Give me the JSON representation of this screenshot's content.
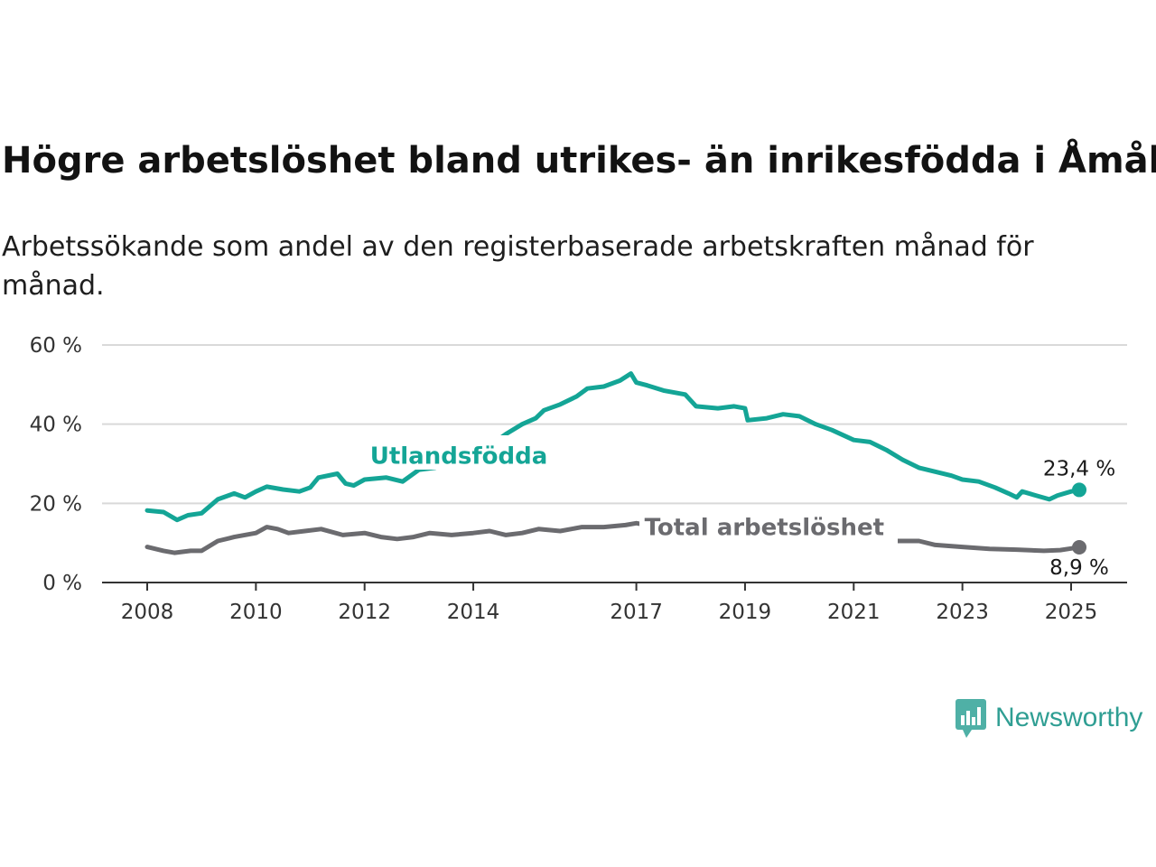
{
  "title": "Högre arbetslöshet bland utrikes- än inrikesfödda i Åmål",
  "subtitle": "Arbetssökande som andel av den registerbaserade arbetskraften månad för månad.",
  "brand": {
    "name": "Newsworthy",
    "icon": "newsworthy-logo-icon"
  },
  "chart_data": {
    "type": "line",
    "x_unit": "year",
    "xlim": [
      2008,
      2025.2
    ],
    "ylim": [
      0,
      60
    ],
    "x_ticks": [
      {
        "value": 2008,
        "label": "2008"
      },
      {
        "value": 2010,
        "label": "2010"
      },
      {
        "value": 2012,
        "label": "2012"
      },
      {
        "value": 2014,
        "label": "2014"
      },
      {
        "value": 2017,
        "label": "2017"
      },
      {
        "value": 2019,
        "label": "2019"
      },
      {
        "value": 2021,
        "label": "2021"
      },
      {
        "value": 2023,
        "label": "2023"
      },
      {
        "value": 2025,
        "label": "2025"
      }
    ],
    "y_ticks": [
      {
        "value": 0,
        "label": "0 %"
      },
      {
        "value": 20,
        "label": "20 %"
      },
      {
        "value": 40,
        "label": "40 %"
      },
      {
        "value": 60,
        "label": "60 %"
      }
    ],
    "grid": "horizontal",
    "colors": {
      "foreign": "#14a596",
      "total": "#6b6b6f",
      "grid": "#d9d9d9",
      "axis": "#333333"
    },
    "series": [
      {
        "key": "foreign",
        "name": "Utlandsfödda",
        "end_label": "23,4 %",
        "points": [
          [
            2008,
            18.2
          ],
          [
            2008.3,
            17.8
          ],
          [
            2008.55,
            15.8
          ],
          [
            2008.75,
            17.0
          ],
          [
            2009,
            17.5
          ],
          [
            2009.3,
            21.0
          ],
          [
            2009.6,
            22.5
          ],
          [
            2009.8,
            21.5
          ],
          [
            2010,
            23.0
          ],
          [
            2010.2,
            24.2
          ],
          [
            2010.5,
            23.5
          ],
          [
            2010.8,
            23.0
          ],
          [
            2011,
            24.0
          ],
          [
            2011.15,
            26.5
          ],
          [
            2011.5,
            27.5
          ],
          [
            2011.65,
            25.0
          ],
          [
            2011.8,
            24.5
          ],
          [
            2012,
            26.0
          ],
          [
            2012.4,
            26.5
          ],
          [
            2012.7,
            25.5
          ],
          [
            2013,
            28.5
          ],
          [
            2013.3,
            29.0
          ],
          [
            2013.6,
            31.0
          ],
          [
            2014,
            33.0
          ],
          [
            2014.4,
            35.5
          ],
          [
            2014.6,
            37.5
          ],
          [
            2014.9,
            40.0
          ],
          [
            2015.15,
            41.5
          ],
          [
            2015.3,
            43.5
          ],
          [
            2015.6,
            45.0
          ],
          [
            2015.9,
            47.0
          ],
          [
            2016.1,
            49.0
          ],
          [
            2016.4,
            49.5
          ],
          [
            2016.7,
            51.0
          ],
          [
            2016.9,
            52.8
          ],
          [
            2017,
            50.5
          ],
          [
            2017.2,
            49.8
          ],
          [
            2017.5,
            48.5
          ],
          [
            2017.9,
            47.5
          ],
          [
            2018.1,
            44.5
          ],
          [
            2018.5,
            44.0
          ],
          [
            2018.8,
            44.5
          ],
          [
            2019,
            44.0
          ],
          [
            2019.05,
            41.0
          ],
          [
            2019.4,
            41.5
          ],
          [
            2019.7,
            42.5
          ],
          [
            2020,
            42.0
          ],
          [
            2020.3,
            40.0
          ],
          [
            2020.6,
            38.5
          ],
          [
            2021,
            36.0
          ],
          [
            2021.3,
            35.5
          ],
          [
            2021.6,
            33.5
          ],
          [
            2021.9,
            31.0
          ],
          [
            2022.2,
            29.0
          ],
          [
            2022.5,
            28.0
          ],
          [
            2022.8,
            27.0
          ],
          [
            2023,
            26.0
          ],
          [
            2023.3,
            25.5
          ],
          [
            2023.6,
            24.0
          ],
          [
            2023.85,
            22.5
          ],
          [
            2024,
            21.5
          ],
          [
            2024.1,
            23.0
          ],
          [
            2024.35,
            22.0
          ],
          [
            2024.6,
            21.0
          ],
          [
            2024.75,
            22.0
          ],
          [
            2025,
            23.0
          ],
          [
            2025.15,
            23.4
          ]
        ]
      },
      {
        "key": "total",
        "name": "Total arbetslöshet",
        "end_label": "8,9 %",
        "points": [
          [
            2008,
            9.0
          ],
          [
            2008.3,
            8.0
          ],
          [
            2008.5,
            7.5
          ],
          [
            2008.8,
            8.0
          ],
          [
            2009,
            8.0
          ],
          [
            2009.3,
            10.5
          ],
          [
            2009.6,
            11.5
          ],
          [
            2010,
            12.5
          ],
          [
            2010.2,
            14.0
          ],
          [
            2010.4,
            13.5
          ],
          [
            2010.6,
            12.5
          ],
          [
            2010.9,
            13.0
          ],
          [
            2011.2,
            13.5
          ],
          [
            2011.6,
            12.0
          ],
          [
            2012,
            12.5
          ],
          [
            2012.3,
            11.5
          ],
          [
            2012.6,
            11.0
          ],
          [
            2012.9,
            11.5
          ],
          [
            2013.2,
            12.5
          ],
          [
            2013.6,
            12.0
          ],
          [
            2014,
            12.5
          ],
          [
            2014.3,
            13.0
          ],
          [
            2014.6,
            12.0
          ],
          [
            2014.9,
            12.5
          ],
          [
            2015.2,
            13.5
          ],
          [
            2015.6,
            13.0
          ],
          [
            2016,
            14.0
          ],
          [
            2016.4,
            14.0
          ],
          [
            2016.8,
            14.5
          ],
          [
            2017,
            15.0
          ],
          [
            2017.4,
            14.0
          ],
          [
            2017.9,
            13.5
          ],
          [
            2018.3,
            13.0
          ],
          [
            2018.8,
            13.0
          ],
          [
            2019.3,
            13.0
          ],
          [
            2019.8,
            12.5
          ],
          [
            2020.3,
            12.0
          ],
          [
            2020.8,
            11.5
          ],
          [
            2021.3,
            11.0
          ],
          [
            2021.8,
            10.5
          ],
          [
            2022.2,
            10.5
          ],
          [
            2022.5,
            9.5
          ],
          [
            2023,
            9.0
          ],
          [
            2023.5,
            8.5
          ],
          [
            2024,
            8.3
          ],
          [
            2024.5,
            8.0
          ],
          [
            2024.8,
            8.2
          ],
          [
            2025,
            8.6
          ],
          [
            2025.15,
            8.9
          ]
        ]
      }
    ],
    "annotations": [
      {
        "series": "foreign",
        "text": "Utlandsfödda",
        "x": 2012.1,
        "y": 32
      },
      {
        "series": "total",
        "text": "Total arbetslöshet",
        "x": 2017.15,
        "y": 14
      }
    ]
  }
}
